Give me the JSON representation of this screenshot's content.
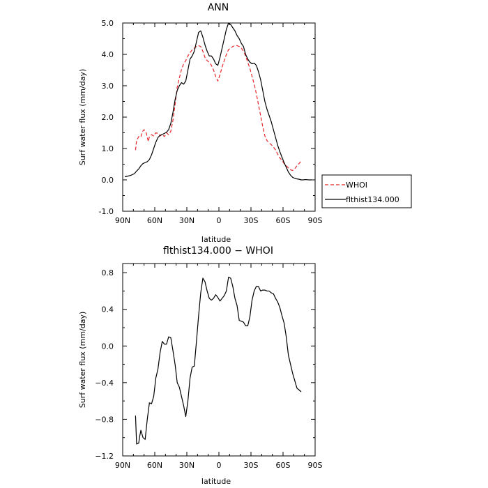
{
  "chart_data": [
    {
      "type": "line",
      "title": "ANN",
      "xlabel": "latitude",
      "ylabel": "Surf water flux (mm/day)",
      "xlim": [
        90,
        -90
      ],
      "ylim": [
        -1.0,
        5.0
      ],
      "x_ticks": [
        90,
        60,
        30,
        0,
        -30,
        -60,
        -90
      ],
      "x_tick_labels": [
        "90N",
        "60N",
        "30N",
        "0",
        "30S",
        "60S",
        "90S"
      ],
      "y_ticks": [
        -1.0,
        0.0,
        1.0,
        2.0,
        3.0,
        4.0,
        5.0
      ],
      "y_tick_labels": [
        "-1.0",
        "0.0",
        "1.0",
        "2.0",
        "3.0",
        "4.0",
        "5.0"
      ],
      "legend_placement": "right",
      "series": [
        {
          "name": "WHOI",
          "color": "#e8262a",
          "dash": "dashed",
          "x": [
            78,
            77,
            75,
            73,
            72,
            70,
            68,
            66,
            65,
            63,
            61,
            59,
            57,
            55,
            53,
            51,
            49,
            47,
            45,
            43,
            41,
            39,
            37,
            35,
            33,
            31,
            29,
            27,
            25,
            23,
            21,
            19,
            17,
            15,
            13,
            11,
            9,
            7,
            5,
            3,
            1,
            -1,
            -3,
            -5,
            -7,
            -9,
            -11,
            -13,
            -15,
            -17,
            -19,
            -21,
            -23,
            -25,
            -27,
            -29,
            -31,
            -33,
            -35,
            -37,
            -39,
            -41,
            -43,
            -45,
            -47,
            -49,
            -51,
            -53,
            -55,
            -57,
            -59,
            -61,
            -63,
            -65,
            -67,
            -69,
            -71,
            -73,
            -75,
            -77
          ],
          "values": [
            0.95,
            1.25,
            1.38,
            1.36,
            1.52,
            1.6,
            1.5,
            1.22,
            1.38,
            1.44,
            1.4,
            1.5,
            1.48,
            1.4,
            1.45,
            1.38,
            1.5,
            1.44,
            1.55,
            1.9,
            2.4,
            2.95,
            3.25,
            3.52,
            3.7,
            3.8,
            3.95,
            4.05,
            4.15,
            4.2,
            4.25,
            4.28,
            4.25,
            4.1,
            3.9,
            3.8,
            3.75,
            3.65,
            3.5,
            3.3,
            3.15,
            3.35,
            3.6,
            3.8,
            4.0,
            4.15,
            4.2,
            4.25,
            4.28,
            4.28,
            4.25,
            4.2,
            4.1,
            3.95,
            3.75,
            3.55,
            3.3,
            3.05,
            2.75,
            2.4,
            2.05,
            1.7,
            1.4,
            1.25,
            1.18,
            1.12,
            1.05,
            0.95,
            0.82,
            0.7,
            0.62,
            0.52,
            0.45,
            0.38,
            0.32,
            0.3,
            0.36,
            0.45,
            0.52,
            0.6
          ]
        },
        {
          "name": "flthist134.000",
          "color": "#000000",
          "dash": "solid",
          "x": [
            88,
            85,
            82,
            79,
            77,
            75,
            73,
            71,
            69,
            67,
            65,
            63,
            61,
            59,
            57,
            55,
            53,
            51,
            49,
            47,
            45,
            43,
            41,
            39,
            37,
            35,
            33,
            31,
            29,
            27,
            25,
            23,
            21,
            19,
            17,
            15,
            13,
            11,
            9,
            7,
            5,
            3,
            1,
            -1,
            -3,
            -5,
            -7,
            -9,
            -11,
            -13,
            -15,
            -17,
            -19,
            -21,
            -23,
            -25,
            -27,
            -29,
            -31,
            -33,
            -35,
            -37,
            -39,
            -41,
            -43,
            -45,
            -47,
            -49,
            -51,
            -53,
            -55,
            -57,
            -59,
            -61,
            -63,
            -65,
            -67,
            -69,
            -71,
            -73,
            -75,
            -77,
            -79,
            -81,
            -84,
            -87
          ],
          "values": [
            0.1,
            0.12,
            0.15,
            0.2,
            0.28,
            0.35,
            0.45,
            0.52,
            0.55,
            0.58,
            0.65,
            0.8,
            1.0,
            1.2,
            1.35,
            1.42,
            1.45,
            1.48,
            1.52,
            1.6,
            1.8,
            2.15,
            2.55,
            2.85,
            3.0,
            3.1,
            3.05,
            3.15,
            3.5,
            3.85,
            3.95,
            4.1,
            4.4,
            4.7,
            4.75,
            4.55,
            4.3,
            4.1,
            3.95,
            3.95,
            3.85,
            3.7,
            3.65,
            3.9,
            4.2,
            4.5,
            4.8,
            5.0,
            4.95,
            4.85,
            4.75,
            4.6,
            4.5,
            4.35,
            4.25,
            4.0,
            3.85,
            3.75,
            3.7,
            3.72,
            3.65,
            3.45,
            3.2,
            2.85,
            2.5,
            2.25,
            2.05,
            1.85,
            1.6,
            1.35,
            1.1,
            0.9,
            0.72,
            0.55,
            0.4,
            0.25,
            0.15,
            0.08,
            0.05,
            0.03,
            0.02,
            0.0,
            0.0,
            0.01,
            0.0,
            0.0
          ]
        }
      ]
    },
    {
      "type": "line",
      "title": "flthist134.000 − WHOI",
      "xlabel": "latitude",
      "ylabel": "Surf water flux (mm/day)",
      "xlim": [
        90,
        -90
      ],
      "ylim": [
        -1.2,
        0.9
      ],
      "x_ticks": [
        90,
        60,
        30,
        0,
        -30,
        -60,
        -90
      ],
      "x_tick_labels": [
        "90N",
        "60N",
        "30N",
        "0",
        "30S",
        "60S",
        "90S"
      ],
      "y_ticks": [
        -1.2,
        -0.8,
        -0.4,
        0.0,
        0.4,
        0.8
      ],
      "y_tick_labels": [
        "−1.2",
        "−0.8",
        "−0.4",
        "0.0",
        "0.4",
        "0.8"
      ],
      "series": [
        {
          "color": "#000000",
          "dash": "solid",
          "x": [
            78,
            77,
            75,
            74,
            73,
            71,
            69,
            67,
            65,
            63,
            61,
            59,
            57,
            55,
            53,
            51,
            49,
            47,
            45,
            43,
            41,
            39,
            37,
            35,
            33,
            31,
            29,
            27,
            25,
            23,
            21,
            19,
            17,
            15,
            13,
            11,
            9,
            7,
            5,
            3,
            1,
            -1,
            -3,
            -5,
            -7,
            -9,
            -11,
            -13,
            -15,
            -17,
            -19,
            -21,
            -23,
            -25,
            -27,
            -29,
            -31,
            -33,
            -35,
            -37,
            -39,
            -41,
            -43,
            -45,
            -47,
            -49,
            -51,
            -53,
            -55,
            -57,
            -59,
            -61,
            -63,
            -65,
            -67,
            -69,
            -71,
            -73,
            -75,
            -77
          ],
          "values": [
            -0.76,
            -1.07,
            -1.06,
            -0.98,
            -0.92,
            -1.0,
            -1.02,
            -0.8,
            -0.62,
            -0.63,
            -0.55,
            -0.35,
            -0.25,
            -0.07,
            0.05,
            0.02,
            0.02,
            0.1,
            0.09,
            -0.05,
            -0.2,
            -0.4,
            -0.45,
            -0.55,
            -0.65,
            -0.77,
            -0.6,
            -0.35,
            -0.23,
            -0.22,
            0.05,
            0.33,
            0.58,
            0.74,
            0.7,
            0.6,
            0.52,
            0.5,
            0.52,
            0.56,
            0.53,
            0.49,
            0.52,
            0.55,
            0.6,
            0.75,
            0.74,
            0.65,
            0.52,
            0.44,
            0.28,
            0.27,
            0.26,
            0.22,
            0.22,
            0.32,
            0.5,
            0.6,
            0.65,
            0.65,
            0.6,
            0.61,
            0.61,
            0.6,
            0.6,
            0.58,
            0.57,
            0.52,
            0.48,
            0.42,
            0.33,
            0.25,
            0.1,
            -0.1,
            -0.2,
            -0.3,
            -0.38,
            -0.46,
            -0.48,
            -0.5
          ]
        }
      ]
    }
  ]
}
